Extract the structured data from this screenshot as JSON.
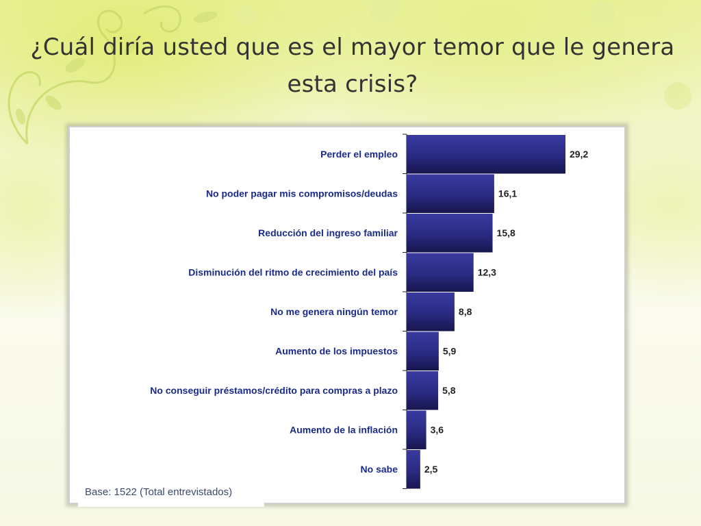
{
  "slide": {
    "title": "¿Cuál diría usted que es el mayor temor que le genera esta crisis?"
  },
  "chart_data": {
    "type": "bar",
    "orientation": "horizontal",
    "categories": [
      "Perder el empleo",
      "No poder pagar mis compromisos/deudas",
      "Reducción del ingreso familiar",
      "Disminución del ritmo de crecimiento del país",
      "No me genera ningún temor",
      "Aumento de los impuestos",
      "No conseguir préstamos/crédito para compras a plazo",
      "Aumento de la inflación",
      "No sabe"
    ],
    "values": [
      29.2,
      16.1,
      15.8,
      12.3,
      8.8,
      5.9,
      5.8,
      3.6,
      2.5
    ],
    "value_labels": [
      "29,2",
      "16,1",
      "15,8",
      "12,3",
      "8,8",
      "5,9",
      "5,8",
      "3,6",
      "2,5"
    ],
    "bar_color": "#2b2b86",
    "label_color": "#1a2a8a",
    "grid": false,
    "note": "Base: 1522 (Total entrevistados)"
  }
}
